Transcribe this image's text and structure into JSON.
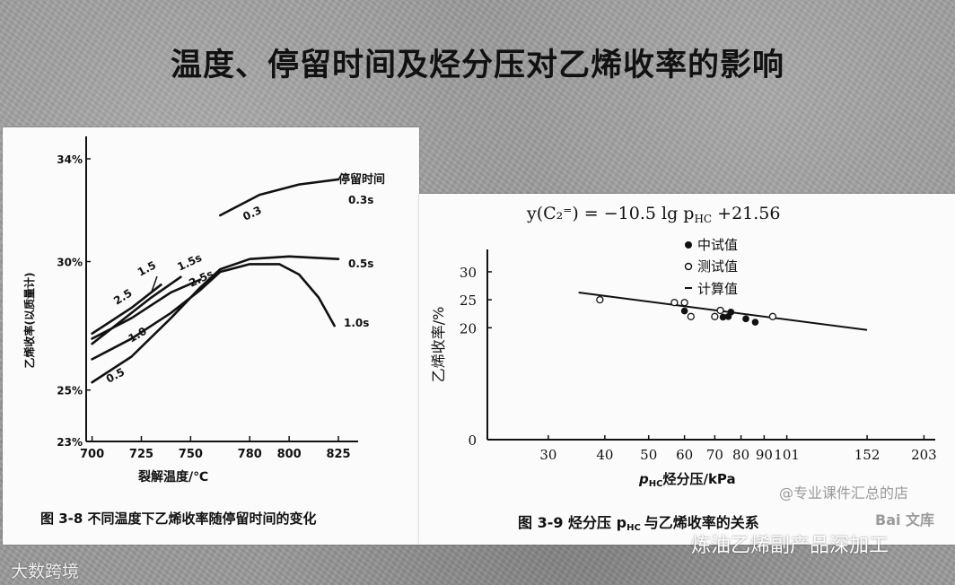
{
  "title": "温度、停留时间及烃分压对乙烯收率的影响",
  "watermarks": {
    "left": "大数跨境",
    "right": "炼油乙烯副产品深加工",
    "store": "@专业课件汇总的店",
    "baidu": "Bai 文库"
  },
  "chart_data": [
    {
      "type": "line",
      "caption": "图 3-8   不同温度下乙烯收率随停留时间的变化",
      "xlabel": "裂解温度/℃",
      "ylabel": "乙烯收率(以质量计)",
      "legend_title": "停留时间",
      "x_ticks": [
        700,
        725,
        750,
        780,
        800,
        825
      ],
      "y_ticks": [
        "23%",
        "25%",
        "30%",
        "34%"
      ],
      "y_tick_values": [
        23,
        25,
        30,
        34
      ],
      "xlim": [
        697,
        835
      ],
      "ylim": [
        23,
        34
      ],
      "end_labels": [
        "0.3s",
        "0.5s",
        "1.0s"
      ],
      "series": [
        {
          "name": "0.3",
          "points": [
            [
              765,
              31.8
            ],
            [
              785,
              32.6
            ],
            [
              805,
              33.0
            ],
            [
              825,
              33.2
            ]
          ]
        },
        {
          "name": "0.5",
          "points": [
            [
              700,
              25.3
            ],
            [
              720,
              26.3
            ],
            [
              740,
              27.8
            ],
            [
              755,
              29.0
            ],
            [
              765,
              29.7
            ],
            [
              780,
              30.1
            ],
            [
              800,
              30.2
            ],
            [
              825,
              30.1
            ]
          ]
        },
        {
          "name": "1.0",
          "points": [
            [
              700,
              26.2
            ],
            [
              720,
              27.0
            ],
            [
              740,
              28.0
            ],
            [
              755,
              28.9
            ],
            [
              765,
              29.6
            ],
            [
              780,
              29.9
            ],
            [
              795,
              29.9
            ],
            [
              805,
              29.5
            ],
            [
              815,
              28.6
            ],
            [
              823,
              27.5
            ]
          ]
        },
        {
          "name": "2.5",
          "points": [
            [
              700,
              27.0
            ],
            [
              720,
              27.8
            ],
            [
              740,
              28.8
            ],
            [
              755,
              29.3
            ]
          ]
        },
        {
          "name": "1.5",
          "points": [
            [
              700,
              27.2
            ],
            [
              720,
              28.2
            ],
            [
              735,
              29.1
            ]
          ]
        },
        {
          "name": "1.5s",
          "points": [
            [
              700,
              26.8
            ],
            [
              715,
              27.7
            ],
            [
              730,
              28.6
            ],
            [
              745,
              29.4
            ]
          ]
        }
      ],
      "curve_labels": [
        "0.3",
        "0.5",
        "1.0",
        "2.5",
        "1.5",
        "1.5s",
        "2.5s",
        "2.5",
        "1.5"
      ]
    },
    {
      "type": "scatter",
      "equation": "y(C₂⁼) = −10.5 lg p",
      "equation_sub": "HC",
      "equation_tail": " +21.56",
      "caption": "图 3-9    烃分压 p",
      "caption_sub": "HC",
      "caption_tail": "与乙烯收率的关系",
      "xlabel": "p",
      "xlabel_sub": "HC",
      "xlabel_tail": "烃分压/kPa",
      "ylabel": "乙烯收率/%",
      "x_scale": "log",
      "x_ticks": [
        30,
        40,
        50,
        60,
        70,
        80,
        90,
        101,
        152,
        203
      ],
      "y_ticks": [
        0,
        20,
        25,
        30
      ],
      "xlim": [
        22,
        215
      ],
      "ylim": [
        0,
        34
      ],
      "legend": [
        "中试值",
        "测试值",
        "计算值"
      ],
      "series": [
        {
          "name": "中试值",
          "marker": "filled",
          "points": [
            [
              60,
              23.0
            ],
            [
              73,
              21.9
            ],
            [
              75,
              22.0
            ],
            [
              76,
              22.8
            ],
            [
              82,
              21.6
            ],
            [
              86,
              21.0
            ]
          ]
        },
        {
          "name": "测试值",
          "marker": "open",
          "points": [
            [
              39,
              25.0
            ],
            [
              57,
              24.5
            ],
            [
              60,
              24.5
            ],
            [
              62,
              22.0
            ],
            [
              70,
              22.0
            ],
            [
              72,
              23.1
            ],
            [
              94,
              22.0
            ]
          ]
        },
        {
          "name": "计算值",
          "marker": "line",
          "points": [
            [
              35,
              26.3
            ],
            [
              152,
              19.6
            ]
          ]
        }
      ]
    }
  ]
}
